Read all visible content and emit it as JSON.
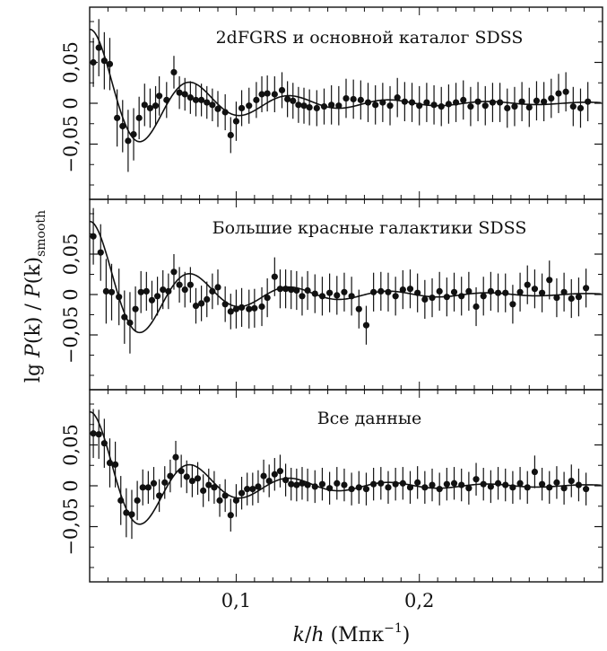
{
  "chart_data": {
    "type": "scatter",
    "ylabel": "lg P(k) / P(k)_smooth",
    "ylabel_parts": {
      "lg": "lg ",
      "P1": "P",
      "k1": "(k)",
      "slash": " / ",
      "P2": "P",
      "k2": "(k)",
      "sub": "smooth"
    },
    "xlabel": "k/h (Мпк⁻¹)",
    "xlabel_parts": {
      "k": "k",
      "slash": "/",
      "h": "h",
      "unit": " (Мпк",
      "exp": "−1",
      "close": ")"
    },
    "xlim": [
      0.02,
      0.3
    ],
    "ylim": [
      -0.1,
      0.1
    ],
    "x_ticks": [
      {
        "value": 0.1,
        "label": "0,1"
      },
      {
        "value": 0.2,
        "label": "0,2"
      }
    ],
    "y_ticks": [
      {
        "value": 0.05,
        "label": "0,05"
      },
      {
        "value": 0,
        "label": "0"
      },
      {
        "value": -0.05,
        "label": "−0,05"
      }
    ],
    "panels": [
      {
        "title": "2dFGRS и основной каталог SDSS",
        "points": [
          [
            0.022,
            0.05,
            0.03
          ],
          [
            0.025,
            0.068,
            0.035
          ],
          [
            0.028,
            0.052,
            0.035
          ],
          [
            0.031,
            0.048,
            0.032
          ],
          [
            0.035,
            -0.018,
            0.035
          ],
          [
            0.038,
            -0.028,
            0.032
          ],
          [
            0.041,
            -0.046,
            0.038
          ],
          [
            0.044,
            -0.038,
            0.032
          ],
          [
            0.047,
            -0.018,
            0.026
          ],
          [
            0.05,
            -0.002,
            0.026
          ],
          [
            0.053,
            -0.006,
            0.024
          ],
          [
            0.056,
            -0.003,
            0.024
          ],
          [
            0.058,
            0.009,
            0.024
          ],
          [
            0.062,
            0.004,
            0.022
          ],
          [
            0.066,
            0.038,
            0.02
          ],
          [
            0.069,
            0.013,
            0.02
          ],
          [
            0.072,
            0.011,
            0.02
          ],
          [
            0.075,
            0.007,
            0.02
          ],
          [
            0.078,
            0.004,
            0.02
          ],
          [
            0.081,
            0.004,
            0.02
          ],
          [
            0.084,
            0.001,
            0.02
          ],
          [
            0.087,
            -0.002,
            0.02
          ],
          [
            0.09,
            -0.007,
            0.022
          ],
          [
            0.094,
            -0.011,
            0.022
          ],
          [
            0.097,
            -0.039,
            0.022
          ],
          [
            0.1,
            -0.022,
            0.024
          ],
          [
            0.103,
            -0.006,
            0.022
          ],
          [
            0.107,
            -0.003,
            0.022
          ],
          [
            0.111,
            0.004,
            0.022
          ],
          [
            0.114,
            0.011,
            0.022
          ],
          [
            0.117,
            0.012,
            0.022
          ],
          [
            0.121,
            0.011,
            0.022
          ],
          [
            0.125,
            0.016,
            0.022
          ],
          [
            0.128,
            0.005,
            0.022
          ],
          [
            0.131,
            0.003,
            0.022
          ],
          [
            0.134,
            -0.002,
            0.022
          ],
          [
            0.137,
            -0.003,
            0.022
          ],
          [
            0.14,
            -0.005,
            0.022
          ],
          [
            0.144,
            -0.006,
            0.022
          ],
          [
            0.148,
            -0.004,
            0.022
          ],
          [
            0.152,
            -0.002,
            0.024
          ],
          [
            0.156,
            -0.003,
            0.024
          ],
          [
            0.16,
            0.006,
            0.024
          ],
          [
            0.164,
            0.005,
            0.024
          ],
          [
            0.168,
            0.004,
            0.024
          ],
          [
            0.172,
            0.001,
            0.024
          ],
          [
            0.176,
            -0.002,
            0.024
          ],
          [
            0.18,
            0.001,
            0.024
          ],
          [
            0.184,
            -0.003,
            0.024
          ],
          [
            0.188,
            0.007,
            0.024
          ],
          [
            0.192,
            0.002,
            0.024
          ],
          [
            0.196,
            0.001,
            0.024
          ],
          [
            0.2,
            -0.003,
            0.024
          ],
          [
            0.204,
            0.001,
            0.024
          ],
          [
            0.208,
            -0.002,
            0.024
          ],
          [
            0.212,
            -0.004,
            0.024
          ],
          [
            0.216,
            -0.001,
            0.024
          ],
          [
            0.22,
            0.001,
            0.024
          ],
          [
            0.224,
            0.004,
            0.024
          ],
          [
            0.228,
            -0.004,
            0.024
          ],
          [
            0.232,
            0.002,
            0.024
          ],
          [
            0.236,
            -0.003,
            0.024
          ],
          [
            0.24,
            0.001,
            0.024
          ],
          [
            0.244,
            0.001,
            0.024
          ],
          [
            0.248,
            -0.006,
            0.024
          ],
          [
            0.252,
            -0.004,
            0.024
          ],
          [
            0.256,
            0.002,
            0.024
          ],
          [
            0.26,
            -0.005,
            0.024
          ],
          [
            0.264,
            0.003,
            0.024
          ],
          [
            0.268,
            0.002,
            0.024
          ],
          [
            0.272,
            0.006,
            0.024
          ],
          [
            0.276,
            0.012,
            0.024
          ],
          [
            0.28,
            0.014,
            0.024
          ],
          [
            0.284,
            -0.004,
            0.024
          ],
          [
            0.288,
            -0.006,
            0.024
          ],
          [
            0.292,
            0.002,
            0.024
          ]
        ]
      },
      {
        "title": "Большие красные галактики SDSS",
        "points": [
          [
            0.022,
            0.072,
            0.035
          ],
          [
            0.026,
            0.052,
            0.035
          ],
          [
            0.029,
            0.004,
            0.04
          ],
          [
            0.032,
            0.003,
            0.035
          ],
          [
            0.036,
            -0.003,
            0.035
          ],
          [
            0.039,
            -0.028,
            0.033
          ],
          [
            0.042,
            -0.035,
            0.038
          ],
          [
            0.045,
            -0.018,
            0.028
          ],
          [
            0.048,
            0.003,
            0.026
          ],
          [
            0.051,
            0.004,
            0.024
          ],
          [
            0.054,
            -0.007,
            0.024
          ],
          [
            0.057,
            -0.002,
            0.024
          ],
          [
            0.06,
            0.006,
            0.024
          ],
          [
            0.063,
            0.004,
            0.022
          ],
          [
            0.066,
            0.028,
            0.022
          ],
          [
            0.069,
            0.012,
            0.022
          ],
          [
            0.072,
            0.006,
            0.022
          ],
          [
            0.075,
            0.012,
            0.022
          ],
          [
            0.078,
            -0.014,
            0.022
          ],
          [
            0.081,
            -0.011,
            0.022
          ],
          [
            0.084,
            -0.006,
            0.022
          ],
          [
            0.087,
            0.004,
            0.022
          ],
          [
            0.09,
            0.009,
            0.022
          ],
          [
            0.094,
            -0.012,
            0.022
          ],
          [
            0.097,
            -0.021,
            0.022
          ],
          [
            0.1,
            -0.018,
            0.024
          ],
          [
            0.103,
            -0.016,
            0.024
          ],
          [
            0.107,
            -0.018,
            0.024
          ],
          [
            0.11,
            -0.017,
            0.024
          ],
          [
            0.114,
            -0.015,
            0.024
          ],
          [
            0.117,
            -0.004,
            0.024
          ],
          [
            0.121,
            0.022,
            0.024
          ],
          [
            0.124,
            0.007,
            0.024
          ],
          [
            0.127,
            0.007,
            0.024
          ],
          [
            0.13,
            0.006,
            0.024
          ],
          [
            0.133,
            0.005,
            0.024
          ],
          [
            0.136,
            -0.002,
            0.024
          ],
          [
            0.139,
            0.005,
            0.024
          ],
          [
            0.143,
            0.001,
            0.024
          ],
          [
            0.147,
            -0.002,
            0.024
          ],
          [
            0.151,
            0.002,
            0.024
          ],
          [
            0.155,
            -0.001,
            0.024
          ],
          [
            0.159,
            0.003,
            0.024
          ],
          [
            0.163,
            -0.002,
            0.024
          ],
          [
            0.167,
            -0.018,
            0.024
          ],
          [
            0.171,
            -0.038,
            0.024
          ],
          [
            0.175,
            0.003,
            0.024
          ],
          [
            0.179,
            0.004,
            0.024
          ],
          [
            0.183,
            0.003,
            0.024
          ],
          [
            0.187,
            -0.002,
            0.024
          ],
          [
            0.191,
            0.006,
            0.024
          ],
          [
            0.195,
            0.007,
            0.024
          ],
          [
            0.199,
            0.002,
            0.024
          ],
          [
            0.203,
            -0.006,
            0.024
          ],
          [
            0.207,
            -0.004,
            0.024
          ],
          [
            0.211,
            0.004,
            0.024
          ],
          [
            0.215,
            -0.003,
            0.024
          ],
          [
            0.219,
            0.003,
            0.024
          ],
          [
            0.223,
            -0.002,
            0.024
          ],
          [
            0.227,
            0.004,
            0.024
          ],
          [
            0.231,
            -0.015,
            0.024
          ],
          [
            0.235,
            -0.002,
            0.024
          ],
          [
            0.239,
            0.004,
            0.024
          ],
          [
            0.243,
            0.002,
            0.024
          ],
          [
            0.247,
            0.002,
            0.024
          ],
          [
            0.251,
            -0.012,
            0.024
          ],
          [
            0.255,
            0.003,
            0.024
          ],
          [
            0.259,
            0.012,
            0.024
          ],
          [
            0.263,
            0.007,
            0.024
          ],
          [
            0.267,
            0.002,
            0.024
          ],
          [
            0.271,
            0.018,
            0.024
          ],
          [
            0.275,
            -0.004,
            0.024
          ],
          [
            0.279,
            0.003,
            0.024
          ],
          [
            0.283,
            -0.005,
            0.024
          ],
          [
            0.287,
            -0.003,
            0.024
          ],
          [
            0.291,
            0.008,
            0.024
          ]
        ]
      },
      {
        "title": "Все данные",
        "points": [
          [
            0.022,
            0.064,
            0.03
          ],
          [
            0.025,
            0.063,
            0.03
          ],
          [
            0.028,
            0.052,
            0.03
          ],
          [
            0.031,
            0.028,
            0.03
          ],
          [
            0.034,
            0.026,
            0.028
          ],
          [
            0.037,
            -0.018,
            0.03
          ],
          [
            0.04,
            -0.033,
            0.03
          ],
          [
            0.043,
            -0.035,
            0.03
          ],
          [
            0.046,
            -0.018,
            0.024
          ],
          [
            0.049,
            -0.002,
            0.022
          ],
          [
            0.052,
            -0.002,
            0.02
          ],
          [
            0.055,
            0.003,
            0.02
          ],
          [
            0.058,
            -0.012,
            0.02
          ],
          [
            0.061,
            0.004,
            0.02
          ],
          [
            0.064,
            0.012,
            0.02
          ],
          [
            0.067,
            0.035,
            0.02
          ],
          [
            0.07,
            0.018,
            0.02
          ],
          [
            0.073,
            0.011,
            0.02
          ],
          [
            0.076,
            0.006,
            0.02
          ],
          [
            0.079,
            0.009,
            0.02
          ],
          [
            0.082,
            -0.006,
            0.02
          ],
          [
            0.085,
            0.001,
            0.02
          ],
          [
            0.088,
            -0.002,
            0.02
          ],
          [
            0.091,
            -0.018,
            0.02
          ],
          [
            0.094,
            -0.012,
            0.02
          ],
          [
            0.097,
            -0.036,
            0.02
          ],
          [
            0.1,
            -0.018,
            0.02
          ],
          [
            0.103,
            -0.009,
            0.02
          ],
          [
            0.106,
            -0.004,
            0.02
          ],
          [
            0.109,
            -0.004,
            0.02
          ],
          [
            0.112,
            -0.001,
            0.02
          ],
          [
            0.115,
            0.012,
            0.02
          ],
          [
            0.118,
            0.006,
            0.02
          ],
          [
            0.121,
            0.014,
            0.02
          ],
          [
            0.124,
            0.018,
            0.02
          ],
          [
            0.127,
            0.007,
            0.02
          ],
          [
            0.13,
            0.002,
            0.02
          ],
          [
            0.133,
            0.001,
            0.02
          ],
          [
            0.136,
            0.003,
            0.02
          ],
          [
            0.139,
            0.001,
            0.02
          ],
          [
            0.143,
            -0.001,
            0.02
          ],
          [
            0.147,
            0.002,
            0.02
          ],
          [
            0.151,
            -0.003,
            0.02
          ],
          [
            0.155,
            0.003,
            0.02
          ],
          [
            0.159,
            0.001,
            0.02
          ],
          [
            0.163,
            -0.004,
            0.02
          ],
          [
            0.167,
            -0.002,
            0.02
          ],
          [
            0.171,
            -0.004,
            0.02
          ],
          [
            0.175,
            0.002,
            0.02
          ],
          [
            0.179,
            0.003,
            0.02
          ],
          [
            0.183,
            -0.002,
            0.02
          ],
          [
            0.187,
            0.002,
            0.02
          ],
          [
            0.191,
            0.003,
            0.02
          ],
          [
            0.195,
            -0.002,
            0.02
          ],
          [
            0.199,
            0.004,
            0.02
          ],
          [
            0.203,
            -0.002,
            0.02
          ],
          [
            0.207,
            0.001,
            0.02
          ],
          [
            0.211,
            -0.004,
            0.02
          ],
          [
            0.215,
            0.002,
            0.02
          ],
          [
            0.219,
            0.003,
            0.02
          ],
          [
            0.223,
            0.001,
            0.02
          ],
          [
            0.227,
            -0.003,
            0.02
          ],
          [
            0.231,
            0.008,
            0.02
          ],
          [
            0.235,
            0.002,
            0.02
          ],
          [
            0.239,
            -0.001,
            0.02
          ],
          [
            0.243,
            0.003,
            0.02
          ],
          [
            0.247,
            0.001,
            0.02
          ],
          [
            0.251,
            -0.002,
            0.02
          ],
          [
            0.255,
            0.003,
            0.02
          ],
          [
            0.259,
            -0.002,
            0.02
          ],
          [
            0.263,
            0.017,
            0.02
          ],
          [
            0.267,
            0.002,
            0.02
          ],
          [
            0.271,
            -0.002,
            0.02
          ],
          [
            0.275,
            0.004,
            0.02
          ],
          [
            0.279,
            -0.003,
            0.02
          ],
          [
            0.283,
            0.006,
            0.02
          ],
          [
            0.287,
            0.001,
            0.02
          ],
          [
            0.291,
            -0.004,
            0.02
          ]
        ]
      }
    ],
    "model_curve": "damped sinusoidal baryon acoustic oscillation fit",
    "colors": {
      "ink": "#111111",
      "background": "#ffffff"
    }
  }
}
